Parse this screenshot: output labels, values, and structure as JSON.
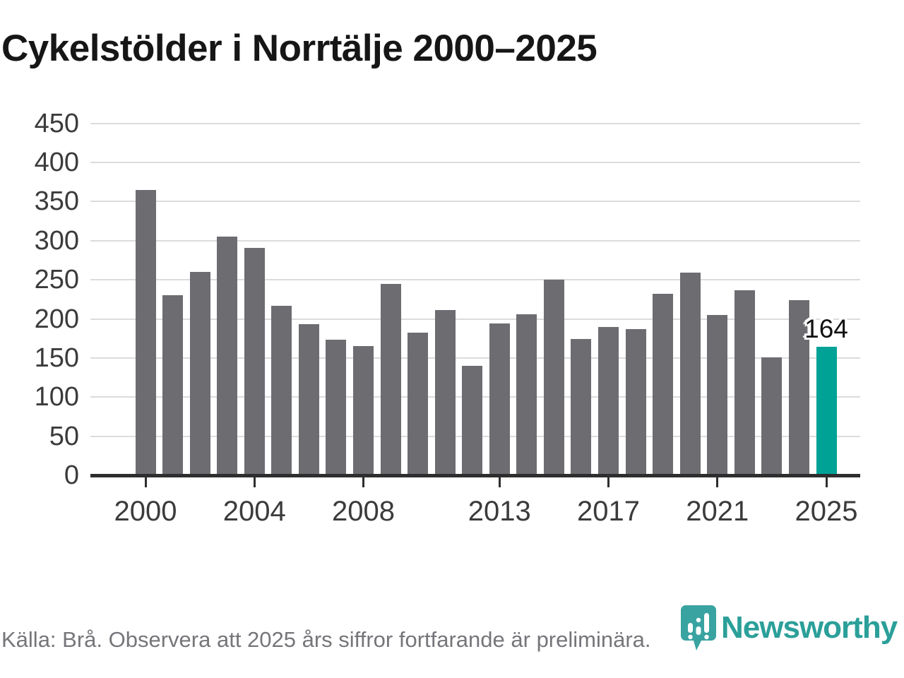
{
  "title": "Cykelstölder i Norrtälje 2000–2025",
  "source_note": "Källa: Brå. Observera att 2025 års siffror fortfarande är preliminära.",
  "branding": {
    "wordmark": "Newsworthy",
    "icon": "newsworthy-speech-bubble-bar-chart-icon"
  },
  "colors": {
    "bar": "#6d6c71",
    "highlight": "#00a296",
    "grid": "#dcdcdc",
    "axis": "#2e2e2e",
    "tick_label": "#3b3b3b",
    "title_text": "#161616",
    "footer_text": "#76757a",
    "logo_teal": "#38a3a0",
    "wordmark_teal": "#2b9f99",
    "annotation_text": "#111111"
  },
  "chart_data": {
    "type": "bar",
    "title": "Cykelstölder i Norrtälje 2000–2025",
    "x": [
      2000,
      2001,
      2002,
      2003,
      2004,
      2005,
      2006,
      2007,
      2008,
      2009,
      2010,
      2011,
      2012,
      2013,
      2014,
      2015,
      2016,
      2017,
      2018,
      2019,
      2020,
      2021,
      2022,
      2023,
      2024,
      2025
    ],
    "values": [
      365,
      230,
      260,
      305,
      291,
      217,
      193,
      173,
      165,
      245,
      182,
      211,
      140,
      194,
      206,
      250,
      174,
      190,
      187,
      232,
      259,
      205,
      237,
      151,
      224,
      164
    ],
    "highlight_index": 25,
    "highlight_note": "2025 bar shown in teal, all others gray",
    "ylim": [
      0,
      450
    ],
    "yticks": [
      0,
      50,
      100,
      150,
      200,
      250,
      300,
      350,
      400,
      450
    ],
    "xticks": [
      2000,
      2004,
      2008,
      2013,
      2017,
      2021,
      2025
    ],
    "grid": "horizontal",
    "legend": "none",
    "data_label": {
      "x": 2025,
      "text": "164"
    }
  }
}
